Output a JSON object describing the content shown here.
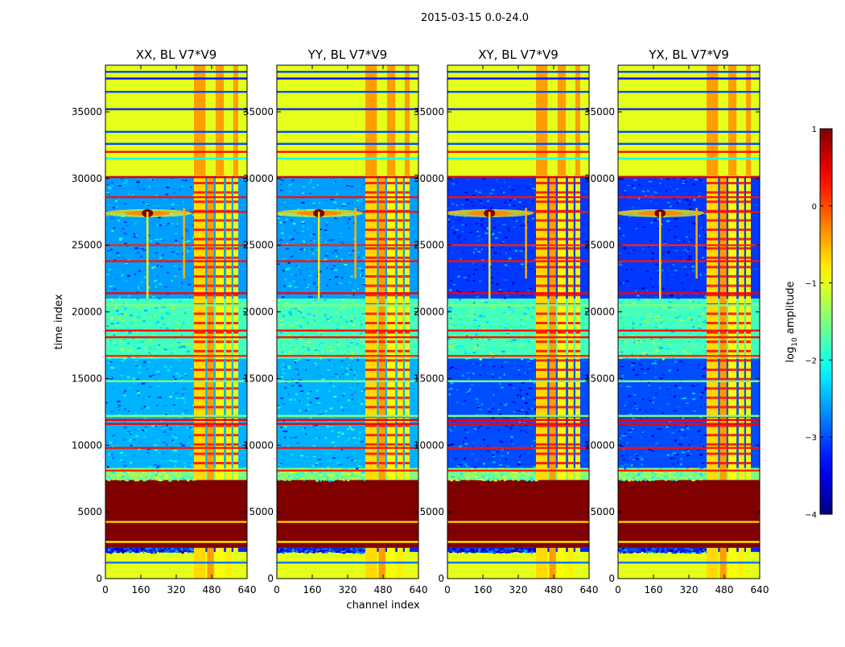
{
  "chart_data": {
    "type": "heatmap",
    "suptitle": "2015-03-15 0.0-24.0",
    "xlabel": "channel index",
    "ylabel": "time index",
    "xlim": [
      0,
      640
    ],
    "ylim": [
      0,
      38500
    ],
    "x_ticks": [
      0,
      160,
      320,
      480,
      640
    ],
    "y_ticks": [
      0,
      5000,
      10000,
      15000,
      20000,
      25000,
      30000,
      35000
    ],
    "panels": [
      {
        "title": "XX, BL V7*V9",
        "polarization": "XX"
      },
      {
        "title": "YY, BL V7*V9",
        "polarization": "YY"
      },
      {
        "title": "XY, BL V7*V9",
        "polarization": "XY"
      },
      {
        "title": "YX, BL V7*V9",
        "polarization": "YX"
      }
    ],
    "colorbar": {
      "label_main": "log",
      "label_sub": "10",
      "label_tail": " amplitude",
      "range": [
        -4,
        1
      ],
      "ticks": [
        1,
        0,
        -1,
        -2,
        -3,
        -4
      ],
      "tick_labels": [
        "1",
        "0",
        "−1",
        "−2",
        "−3",
        "−4"
      ],
      "colormap": "jet"
    },
    "bands": [
      {
        "t0": 0,
        "t1": 2000,
        "value": -1.0
      },
      {
        "t0": 2000,
        "t1": 2300,
        "value": -3.2
      },
      {
        "t0": 2300,
        "t1": 7400,
        "value": 1.0
      },
      {
        "t0": 7400,
        "t1": 8300,
        "value": -1.5
      },
      {
        "t0": 8300,
        "t1": 16500,
        "value": -2.5
      },
      {
        "t0": 16500,
        "t1": 21000,
        "value": -1.8
      },
      {
        "t0": 21000,
        "t1": 30200,
        "value": -2.6
      },
      {
        "t0": 30200,
        "t1": 38500,
        "value": -1.0
      }
    ],
    "rfi_channels": [
      {
        "c0": 400,
        "c1": 452,
        "value": -0.7
      },
      {
        "c0": 460,
        "c1": 490,
        "value": -0.4
      },
      {
        "c0": 498,
        "c1": 535,
        "value": -0.9
      },
      {
        "c0": 545,
        "c1": 570,
        "value": -0.8
      },
      {
        "c0": 578,
        "c1": 600,
        "value": -1.0
      }
    ],
    "lines": [
      {
        "t": 1200,
        "value": -2.8
      },
      {
        "t": 2750,
        "value": -0.8
      },
      {
        "t": 4250,
        "value": -0.6
      },
      {
        "t": 8100,
        "value": 0.2
      },
      {
        "t": 9800,
        "value": 0.3
      },
      {
        "t": 11600,
        "value": 0.4
      },
      {
        "t": 11900,
        "value": 0.4
      },
      {
        "t": 12200,
        "value": -1.5
      },
      {
        "t": 14800,
        "value": -1.5
      },
      {
        "t": 16700,
        "value": 0.2
      },
      {
        "t": 18100,
        "value": 0.3
      },
      {
        "t": 18600,
        "value": 0.3
      },
      {
        "t": 20500,
        "value": -1.5
      },
      {
        "t": 21400,
        "value": 0.4
      },
      {
        "t": 23800,
        "value": 0.3
      },
      {
        "t": 25000,
        "value": 0.2
      },
      {
        "t": 27500,
        "value": 0.3
      },
      {
        "t": 28600,
        "value": 0.3
      },
      {
        "t": 30100,
        "value": 0.5
      },
      {
        "t": 31500,
        "value": -2.0
      },
      {
        "t": 32000,
        "value": 0.3
      },
      {
        "t": 32600,
        "value": -3.0
      },
      {
        "t": 33500,
        "value": -3.0
      },
      {
        "t": 35200,
        "value": -3.2
      },
      {
        "t": 36500,
        "value": -3.0
      },
      {
        "t": 37500,
        "value": -3.3
      },
      {
        "t": 38000,
        "value": -3.0
      }
    ],
    "features": [
      {
        "kind": "spot",
        "channel": 190,
        "time": 27400,
        "value": 1.0
      },
      {
        "kind": "vline",
        "channel": 190,
        "t0": 21000,
        "t1": 27500,
        "value": -0.8
      },
      {
        "kind": "vline",
        "channel": 355,
        "t0": 22500,
        "t1": 27800,
        "value": -0.5
      }
    ]
  }
}
